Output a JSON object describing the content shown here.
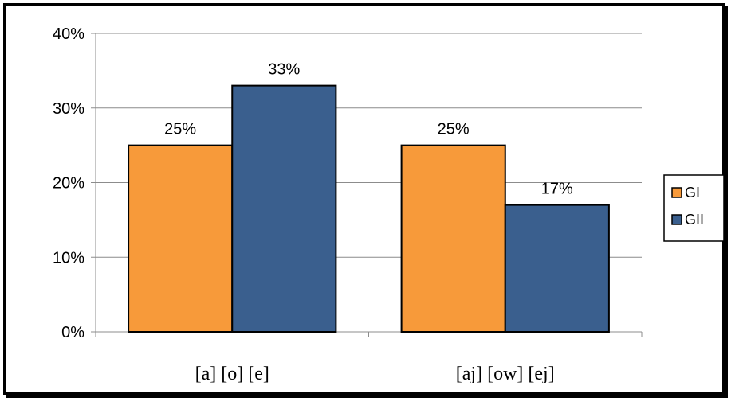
{
  "chart_data": {
    "type": "bar",
    "title": "",
    "xlabel": "",
    "ylabel": "",
    "categories": [
      "[a] [o] [e]",
      "[aj] [ow] [ej]"
    ],
    "series": [
      {
        "name": "GI",
        "values": [
          25,
          25
        ],
        "labels": [
          "25%",
          "25%"
        ],
        "color": "#F79A3A"
      },
      {
        "name": "GII",
        "values": [
          33,
          17
        ],
        "labels": [
          "33%",
          "17%"
        ],
        "color": "#3A5F8E"
      }
    ],
    "ylim": [
      0,
      40
    ],
    "yticks": [
      0,
      10,
      20,
      30,
      40
    ],
    "ytick_labels": [
      "0%",
      "10%",
      "20%",
      "30%",
      "40%"
    ],
    "grid": true,
    "legend_position": "right"
  }
}
